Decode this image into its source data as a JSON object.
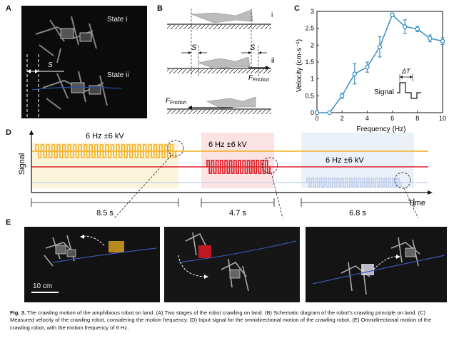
{
  "panels": {
    "A": {
      "letter": "A",
      "state_i": "State i",
      "state_ii": "State ii",
      "distance_label": "S"
    },
    "B": {
      "letter": "B",
      "label_i": "i",
      "label_ii": "ii",
      "label_s1": "S",
      "label_s2": "S",
      "friction_right": "F",
      "friction_right_sub": "Friction",
      "friction_left": "F",
      "friction_left_sub": "Friction"
    },
    "C": {
      "letter": "C",
      "signal_label": "Signal",
      "delta_t": "ΔT"
    },
    "D": {
      "letter": "D",
      "ylabel": "Signal",
      "xlabel": "Time",
      "segments": [
        {
          "label": "6 Hz   ±6 kV",
          "duration": "8.5 s",
          "color": "#f2b020"
        },
        {
          "label": "6 Hz   ±6 kV",
          "duration": "4.7 s",
          "color": "#e0202a"
        },
        {
          "label": "6 Hz   ±6 kV",
          "duration": "6.8 s",
          "color": "#c9d6ee"
        }
      ]
    },
    "E": {
      "letter": "E",
      "scale_bar": "10 cm"
    }
  },
  "chart_data": {
    "type": "line",
    "xlabel": "Frequency (Hz)",
    "ylabel": "Velocity (cm·s⁻¹)",
    "xlim": [
      0,
      10
    ],
    "ylim": [
      0,
      3
    ],
    "xticks": [
      "0",
      "2",
      "4",
      "6",
      "8",
      "10"
    ],
    "yticks": [
      "0",
      "0.5",
      "1",
      "1.5",
      "2",
      "2.5",
      "3"
    ],
    "x": [
      0,
      1,
      2,
      3,
      4,
      5,
      6,
      7,
      8,
      9,
      10
    ],
    "y": [
      0,
      0,
      0.5,
      1.15,
      1.35,
      1.95,
      2.9,
      2.55,
      2.48,
      2.2,
      2.12
    ],
    "err": [
      0,
      0,
      0.07,
      0.3,
      0.15,
      0.3,
      0.05,
      0.2,
      0.08,
      0.1,
      0.1
    ],
    "color": "#3a8fc4"
  },
  "caption": {
    "fig": "Fig. 3.",
    "text": " The crawling motion of the amphibious robot on land. (A) Two stages of the robot crawling on land. (B) Schematic diagram of the robot’s crawling principle on land. (C) Measured velocity of the crawling robot, considering the motion frequency. (D) Input signal for the omnidirectional motion of the crawling robot. (E) Omnidirectional motion of the crawling robot, with the motion frequency of 6 Hz."
  }
}
